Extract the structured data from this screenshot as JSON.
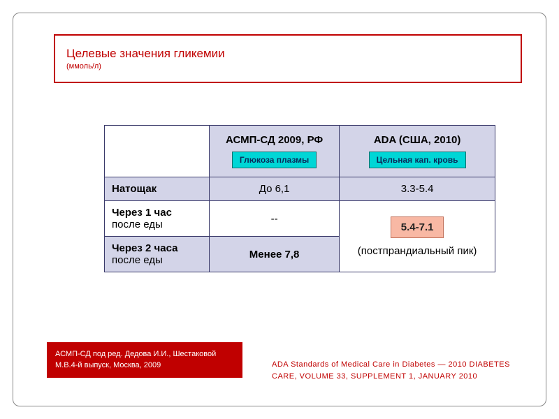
{
  "title": {
    "main": "Целевые значения гликемии",
    "sub": "(ммоль/л)"
  },
  "table": {
    "headers": {
      "col1_title": "АСМП-СД 2009, РФ",
      "col1_badge": "Глюкоза плазмы",
      "col2_title": "ADA (США, 2010)",
      "col2_badge": "Цельная кап. кровь"
    },
    "rows": {
      "fasting": {
        "label": "Натощак",
        "col1": "До 6,1",
        "col2": "3.3-5.4"
      },
      "after1h": {
        "label_bold": "Через 1 час",
        "label_sub": "после еды",
        "col1": "--"
      },
      "after2h": {
        "label_bold": "Через 2 часа",
        "label_sub": "после еды",
        "col1": "Менее 7,8"
      },
      "merged_right_badge": "5.4-7.1",
      "merged_right_text": "(постпрандиальный пик)"
    }
  },
  "refs": {
    "left": "АСМП-СД под ред. Дедова И.И., Шестаковой М.В.4-й выпуск, Москва, 2009",
    "right": "ADA Standards of Medical Care in Diabetes — 2010 DIABETES CARE, VOLUME 33, SUPPLEMENT 1, JANUARY 2010"
  },
  "colors": {
    "accent_red": "#c00000",
    "header_bg": "#d3d4e8",
    "badge_teal": "#00d6d6",
    "badge_pink": "#f8b8a4"
  }
}
